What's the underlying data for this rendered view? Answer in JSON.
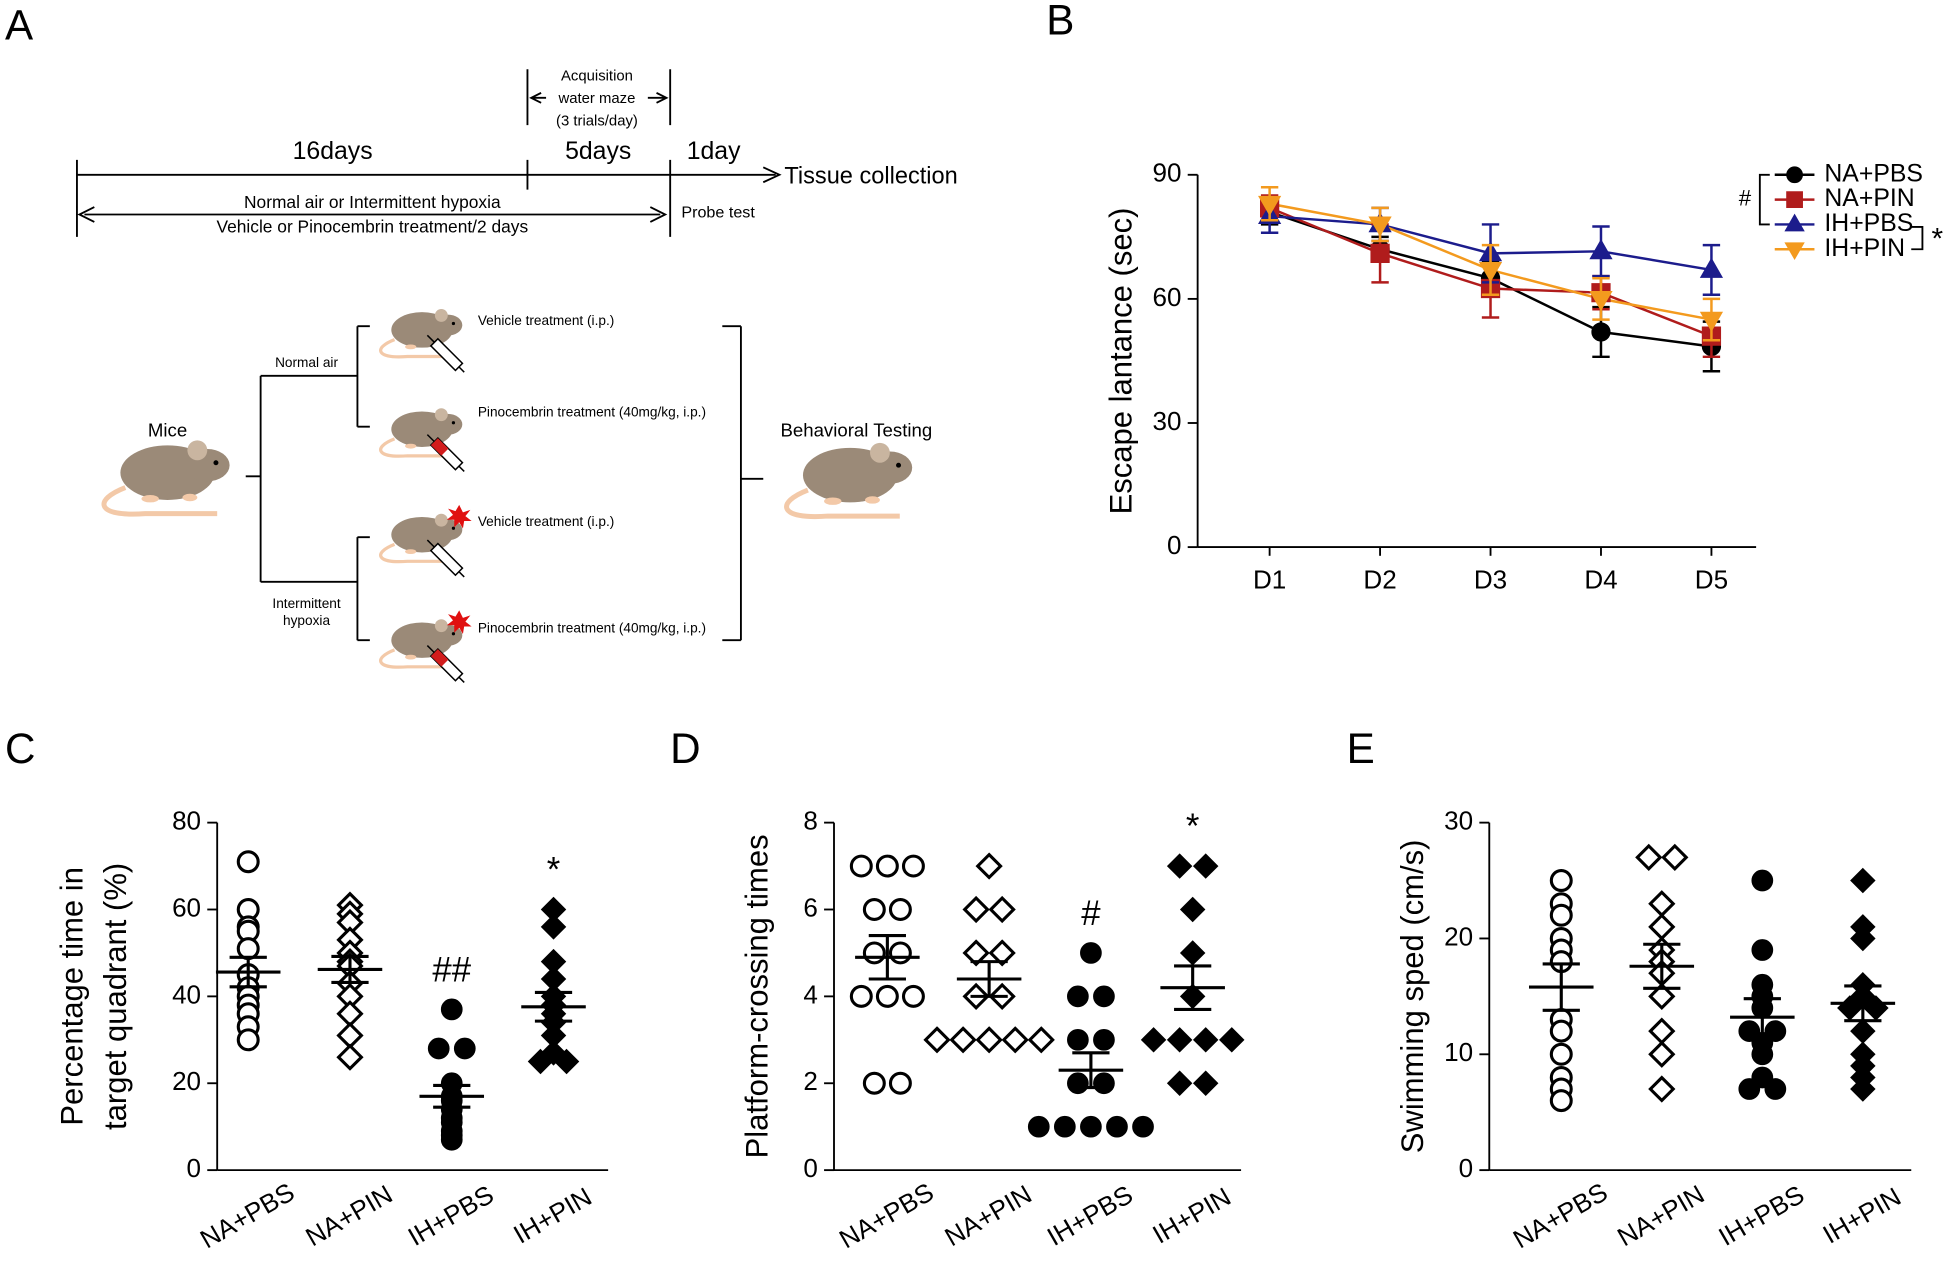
{
  "diagram": {
    "label": "A",
    "timeline": {
      "phase1": "16days",
      "phase2": "5days",
      "phase3": "1day",
      "end": "Tissue collection",
      "acquisition": [
        "Acquisition",
        "water maze",
        "(3 trials/day)"
      ],
      "treatment": [
        "Normal air or Intermittent hypoxia",
        "Vehicle or Pinocembrin treatment/2 days"
      ],
      "probe": "Probe test"
    },
    "tree": {
      "root": "Mice",
      "branches": [
        {
          "label": [
            "Normal air"
          ],
          "arms": [
            "Vehicle treatment (i.p.)",
            "Pinocembrin treatment (40mg/kg, i.p.)"
          ]
        },
        {
          "label": [
            "Intermittent",
            "hypoxia"
          ],
          "arms": [
            "Vehicle treatment (i.p.)",
            "Pinocembrin treatment (40mg/kg, i.p.)"
          ]
        }
      ],
      "outcome": "Behavioral Testing"
    }
  },
  "chart_data": [
    {
      "type": "line",
      "label": "B",
      "ylabel": "Escape lantance (sec)",
      "categories": [
        "D1",
        "D2",
        "D3",
        "D4",
        "D5"
      ],
      "series": [
        {
          "name": "NA+PBS",
          "color": "#000000",
          "marker": "circle",
          "values": [
            81,
            72,
            65,
            52,
            48.5
          ],
          "errors": [
            3,
            3,
            4,
            6,
            6
          ]
        },
        {
          "name": "NA+PIN",
          "color": "#b01c1c",
          "marker": "square",
          "values": [
            82,
            71,
            62.5,
            61.5,
            51
          ],
          "errors": [
            3,
            7,
            7,
            4,
            5
          ]
        },
        {
          "name": "IH+PBS",
          "color": "#1c1c8c",
          "marker": "triangle",
          "values": [
            80,
            78,
            71,
            71.5,
            67
          ],
          "errors": [
            4,
            4,
            7,
            6,
            6
          ]
        },
        {
          "name": "IH+PIN",
          "color": "#f39a1e",
          "marker": "triangle-down",
          "values": [
            83,
            78,
            67,
            60,
            55
          ],
          "errors": [
            4,
            4,
            6,
            5,
            5
          ]
        }
      ],
      "ylim": [
        0,
        90
      ],
      "yticks": [
        0,
        30,
        60,
        90
      ],
      "annotations": [
        "#",
        "*"
      ]
    },
    {
      "type": "dot",
      "label": "C",
      "ylabel": [
        "Percentage time in",
        "target quadrant (%)"
      ],
      "categories": [
        "NA+PBS",
        "NA+PIN",
        "IH+PBS",
        "IH+PIN"
      ],
      "markers": [
        "circle-open",
        "diamond-open",
        "circle",
        "diamond"
      ],
      "color": "#000000",
      "groups": [
        {
          "values": [
            71,
            60,
            56,
            55,
            51,
            45,
            42,
            40,
            38,
            36,
            33,
            30
          ],
          "mean": 45.6,
          "sem": 3.4
        },
        {
          "values": [
            61,
            59,
            57,
            53,
            50,
            48,
            47,
            43,
            40,
            36,
            31,
            26
          ],
          "mean": 46.2,
          "sem": 3
        },
        {
          "values": [
            37,
            28,
            28,
            20,
            17,
            16,
            14,
            12,
            11,
            9,
            8,
            7
          ],
          "mean": 17,
          "sem": 2.5
        },
        {
          "values": [
            60,
            56,
            48,
            44,
            40,
            38,
            36,
            34,
            31,
            27,
            25,
            25
          ],
          "mean": 37.6,
          "sem": 3.3
        }
      ],
      "ylim": [
        0,
        80
      ],
      "yticks": [
        0,
        20,
        40,
        60,
        80
      ],
      "annotations": [
        null,
        null,
        "##",
        "*"
      ]
    },
    {
      "type": "dot",
      "label": "D",
      "ylabel": "Platform-crossing times",
      "categories": [
        "NA+PBS",
        "NA+PIN",
        "IH+PBS",
        "IH+PIN"
      ],
      "markers": [
        "circle-open",
        "diamond-open",
        "circle",
        "diamond"
      ],
      "color": "#000000",
      "groups": [
        {
          "values": [
            7,
            7,
            7,
            6,
            6,
            5,
            5,
            4,
            4,
            4,
            2,
            2
          ],
          "mean": 4.9,
          "sem": 0.5
        },
        {
          "values": [
            7,
            6,
            6,
            5,
            5,
            4,
            4,
            3,
            3,
            3,
            3,
            3
          ],
          "mean": 4.4,
          "sem": 0.4
        },
        {
          "values": [
            5,
            4,
            4,
            3,
            3,
            2,
            2,
            1,
            1,
            1,
            1,
            1
          ],
          "mean": 2.3,
          "sem": 0.4
        },
        {
          "values": [
            7,
            7,
            6,
            5,
            4,
            3,
            3,
            3,
            3,
            2,
            2
          ],
          "mean": 4.2,
          "sem": 0.5
        }
      ],
      "ylim": [
        0,
        8
      ],
      "yticks": [
        0,
        2,
        4,
        6,
        8
      ],
      "annotations": [
        null,
        null,
        "#",
        "*"
      ]
    },
    {
      "type": "dot",
      "label": "E",
      "ylabel": "Swimming sped (cm/s)",
      "categories": [
        "NA+PBS",
        "NA+PIN",
        "IH+PBS",
        "IH+PIN"
      ],
      "markers": [
        "circle-open",
        "diamond-open",
        "circle",
        "diamond"
      ],
      "color": "#000000",
      "groups": [
        {
          "values": [
            25,
            23,
            22,
            20,
            19,
            18,
            13,
            12,
            10,
            8,
            7,
            6
          ],
          "mean": 15.8,
          "sem": 2
        },
        {
          "values": [
            27,
            27,
            23,
            21,
            19,
            18,
            17,
            15,
            12,
            10,
            7
          ],
          "mean": 17.6,
          "sem": 1.9
        },
        {
          "values": [
            25,
            19,
            16,
            15,
            14,
            12,
            12,
            11,
            10,
            8,
            7,
            7
          ],
          "mean": 13.2,
          "sem": 1.6
        },
        {
          "values": [
            25,
            21,
            20,
            16,
            15,
            14,
            14,
            12,
            10,
            9,
            8,
            7
          ],
          "mean": 14.4,
          "sem": 1.5
        }
      ],
      "ylim": [
        0,
        30
      ],
      "yticks": [
        0,
        10,
        20,
        30
      ],
      "annotations": [
        null,
        null,
        null,
        null
      ]
    }
  ]
}
